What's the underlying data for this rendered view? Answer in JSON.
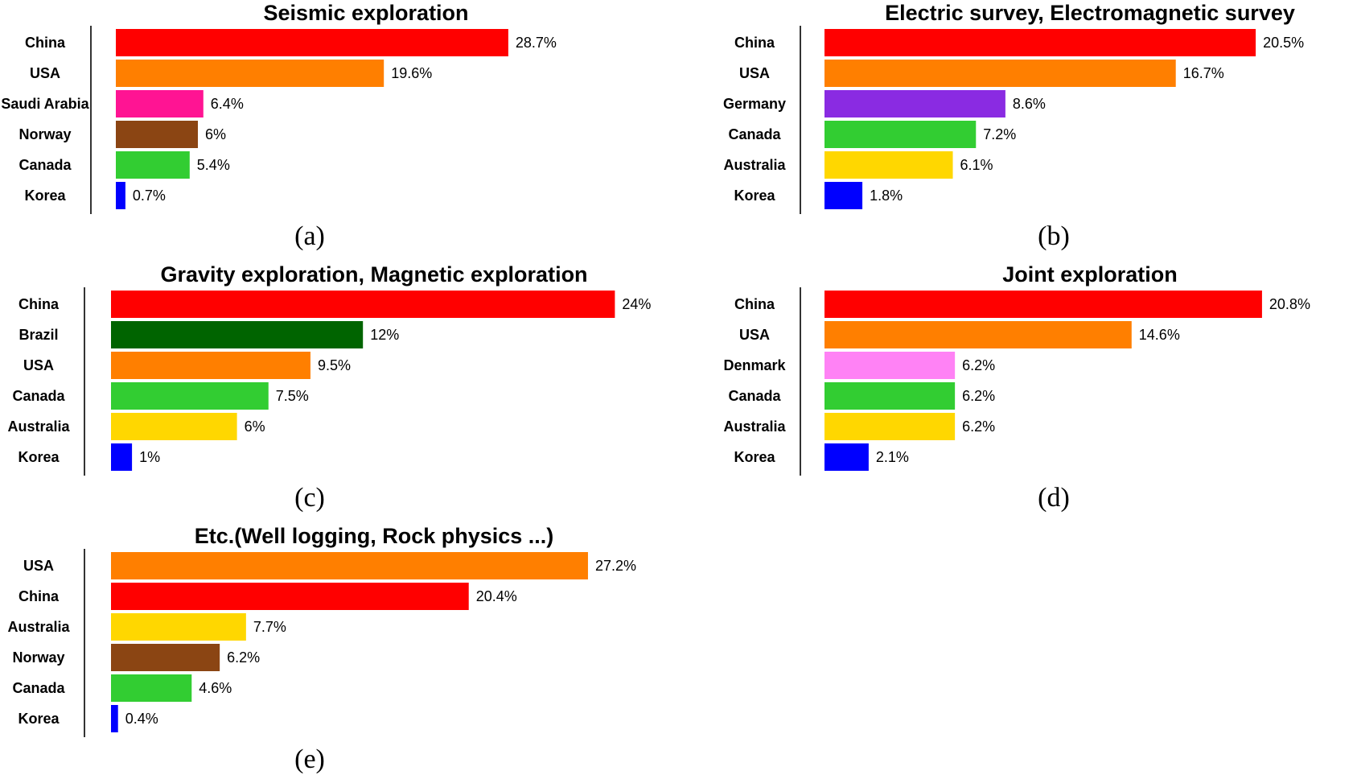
{
  "chart_data": [
    {
      "type": "bar",
      "orientation": "horizontal",
      "title": "Seismic exploration",
      "caption": "(a)",
      "categories": [
        "China",
        "USA",
        "Saudi Arabia",
        "Norway",
        "Canada",
        "Korea"
      ],
      "values": [
        28.7,
        19.6,
        6.4,
        6,
        5.4,
        0.7
      ],
      "value_labels": [
        "28.7%",
        "19.6%",
        "6.4%",
        "6%",
        "5.4%",
        "0.7%"
      ],
      "colors": [
        "#ff0000",
        "#ff7f00",
        "#ff1493",
        "#8b4513",
        "#32cd32",
        "#0000ff"
      ]
    },
    {
      "type": "bar",
      "orientation": "horizontal",
      "title": "Electric survey, Electromagnetic survey",
      "caption": "(b)",
      "categories": [
        "China",
        "USA",
        "Germany",
        "Canada",
        "Australia",
        "Korea"
      ],
      "values": [
        20.5,
        16.7,
        8.6,
        7.2,
        6.1,
        1.8
      ],
      "value_labels": [
        "20.5%",
        "16.7%",
        "8.6%",
        "7.2%",
        "6.1%",
        "1.8%"
      ],
      "colors": [
        "#ff0000",
        "#ff7f00",
        "#8a2be2",
        "#32cd32",
        "#ffd700",
        "#0000ff"
      ]
    },
    {
      "type": "bar",
      "orientation": "horizontal",
      "title": "Gravity exploration, Magnetic exploration",
      "caption": "(c)",
      "categories": [
        "China",
        "Brazil",
        "USA",
        "Canada",
        "Australia",
        "Korea"
      ],
      "values": [
        24,
        12,
        9.5,
        7.5,
        6,
        1
      ],
      "value_labels": [
        "24%",
        "12%",
        "9.5%",
        "7.5%",
        "6%",
        "1%"
      ],
      "colors": [
        "#ff0000",
        "#006400",
        "#ff7f00",
        "#32cd32",
        "#ffd700",
        "#0000ff"
      ]
    },
    {
      "type": "bar",
      "orientation": "horizontal",
      "title": "Joint exploration",
      "caption": "(d)",
      "categories": [
        "China",
        "USA",
        "Denmark",
        "Canada",
        "Australia",
        "Korea"
      ],
      "values": [
        20.8,
        14.6,
        6.2,
        6.2,
        6.2,
        2.1
      ],
      "value_labels": [
        "20.8%",
        "14.6%",
        "6.2%",
        "6.2%",
        "6.2%",
        "2.1%"
      ],
      "colors": [
        "#ff0000",
        "#ff7f00",
        "#ff82f5",
        "#32cd32",
        "#ffd700",
        "#0000ff"
      ]
    },
    {
      "type": "bar",
      "orientation": "horizontal",
      "title": "Etc.(Well logging, Rock physics ...)",
      "caption": "(e)",
      "categories": [
        "USA",
        "China",
        "Australia",
        "Norway",
        "Canada",
        "Korea"
      ],
      "values": [
        27.2,
        20.4,
        7.7,
        6.2,
        4.6,
        0.4
      ],
      "value_labels": [
        "27.2%",
        "20.4%",
        "7.7%",
        "6.2%",
        "4.6%",
        "0.4%"
      ],
      "colors": [
        "#ff7f00",
        "#ff0000",
        "#ffd700",
        "#8b4513",
        "#32cd32",
        "#0000ff"
      ]
    }
  ]
}
